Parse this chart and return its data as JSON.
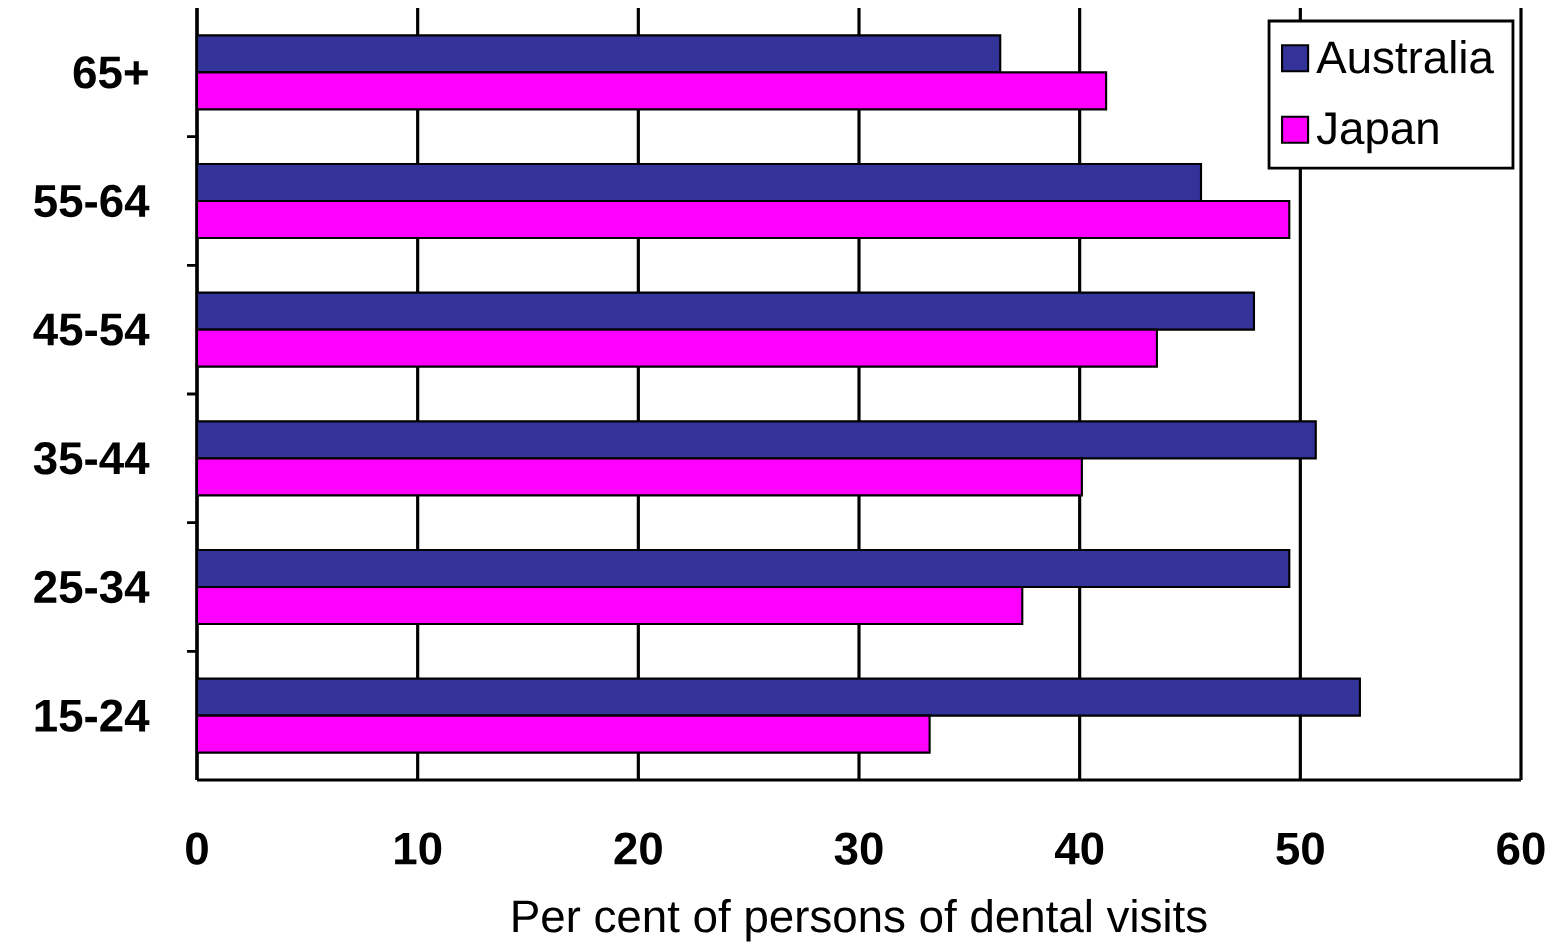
{
  "chart_data": {
    "type": "bar",
    "orientation": "horizontal",
    "xlabel": "Per cent of persons of dental visits",
    "categories": [
      "65+",
      "55-64",
      "45-54",
      "35-44",
      "25-34",
      "15-24"
    ],
    "series": [
      {
        "name": "Australia",
        "color": "#333399",
        "values": [
          36.4,
          45.5,
          47.9,
          50.7,
          49.5,
          52.7
        ]
      },
      {
        "name": "Japan",
        "color": "#ff00ff",
        "values": [
          41.2,
          49.5,
          43.5,
          40.1,
          37.4,
          33.2
        ]
      }
    ],
    "xlim": [
      0,
      60
    ],
    "xticks": [
      0,
      10,
      20,
      30,
      40,
      50,
      60
    ],
    "grid": "x",
    "legend": "top right"
  }
}
